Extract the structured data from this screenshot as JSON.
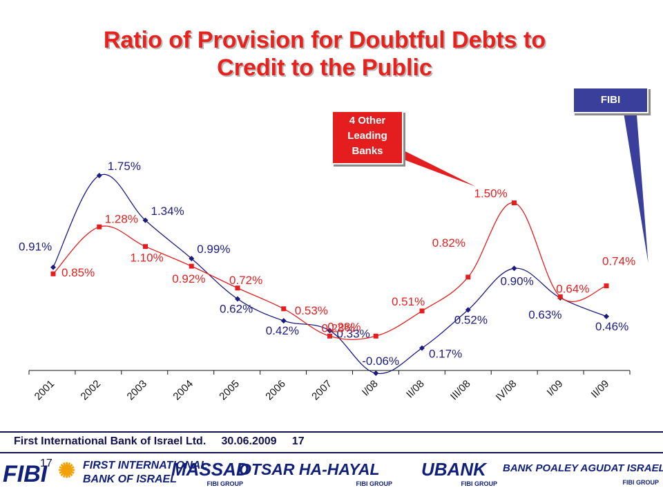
{
  "title": {
    "line1": "Ratio of Provision for Doubtful Debts to",
    "line2": "Credit to the Public"
  },
  "callouts": {
    "red_lines": [
      "4 Other",
      "Leading",
      "Banks"
    ],
    "blue": "FIBI"
  },
  "colors": {
    "title": "#e8211d",
    "fibi": "#1a1a80",
    "other_banks": "#e41e1e",
    "callout_blue": "#3a3f9c"
  },
  "chart_data": {
    "type": "line",
    "categories": [
      "2001",
      "2002",
      "2003",
      "2004",
      "2005",
      "2006",
      "2007",
      "I/08",
      "II/08",
      "III/08",
      "IV/08",
      "I/09",
      "II/09"
    ],
    "series": [
      {
        "name": "FIBI",
        "color": "#1a1a80",
        "marker": "diamond",
        "values": [
          0.91,
          1.75,
          1.34,
          0.99,
          0.62,
          0.42,
          0.33,
          -0.06,
          0.17,
          0.52,
          0.9,
          0.63,
          0.46
        ],
        "labels": [
          "0.91%",
          "1.75%",
          "1.34%",
          "0.99%",
          "0.62%",
          "0.42%",
          "0.33%",
          "-0.06%",
          "0.17%",
          "0.52%",
          "0.90%",
          "0.63%",
          "0.46%"
        ]
      },
      {
        "name": "4 Other Leading Banks",
        "color": "#e41e1e",
        "marker": "square",
        "values": [
          0.85,
          1.28,
          1.1,
          0.92,
          0.72,
          0.53,
          0.28,
          0.28,
          0.51,
          0.82,
          1.5,
          0.64,
          0.74
        ],
        "labels": [
          "0.85%",
          "1.28%",
          "1.10%",
          "0.92%",
          "0.72%",
          "0.53%",
          "0.28%",
          "0.28%",
          "0.51%",
          "0.82%",
          "1.50%",
          "0.64%",
          "0.74%"
        ]
      }
    ],
    "ylim": [
      -0.06,
      1.75
    ],
    "grid": false,
    "legend": "none"
  },
  "footer": {
    "text": "First International Bank of Israel Ltd.     30.06.2009     17",
    "slide_number": "17"
  },
  "logos": [
    {
      "main": "FIBI",
      "sub": ""
    },
    {
      "main": "FIRST INTERNATIONAL",
      "sub": "BANK OF ISRAEL"
    },
    {
      "main": "MASSAD",
      "sub": "FIBI GROUP"
    },
    {
      "main": "OTSAR HA-HAYAL",
      "sub": "FIBI GROUP"
    },
    {
      "main": "UBANK",
      "sub": "FIBI GROUP"
    },
    {
      "main": "BANK POALEY AGUDAT ISRAEL",
      "sub": "FIBI GROUP"
    }
  ]
}
